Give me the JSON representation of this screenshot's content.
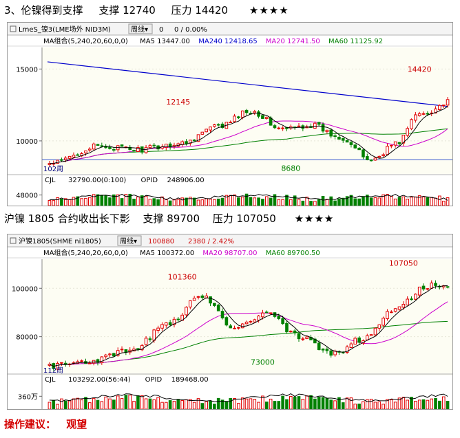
{
  "section1": {
    "title": "3、伦镍得到支撑",
    "support": "支撑 12740",
    "resistance": "压力 14420",
    "stars": "★★★★"
  },
  "section2": {
    "title": "沪镍 1805 合约收出长下影",
    "support": "支撑 89700",
    "resistance": "压力 107050",
    "stars": "★★★★"
  },
  "advice": {
    "label": "操作建议：",
    "value": "观望"
  },
  "chart_data": [
    {
      "type": "candlestick",
      "name": "LmeS_镍3(LME场外 NID3M)",
      "period_button": "周线",
      "header_values": [
        "0",
        "0 / 0.00%"
      ],
      "ma_legend": {
        "group": "MA组合(5,240,20,60,0,0)",
        "ma5": "MA5 13447.00",
        "ma240": "MA240 12418.65",
        "ma20": "MA20 12741.50",
        "ma60": "MA60 11125.92"
      },
      "price_ticks": [
        "15000",
        "10000"
      ],
      "ylim": [
        7700,
        16500
      ],
      "annotations": [
        {
          "label": "12145",
          "value": 12145
        },
        {
          "label": "8680",
          "value": 8680
        },
        {
          "label": "14420",
          "value": 14420
        }
      ],
      "period_label": "102周",
      "volume_legend": {
        "cjl": "CJL",
        "cjl_value": "32790.00(0:100)",
        "opid": "OPID",
        "opid_value": "248906.00"
      },
      "volume_ticks": [
        "48000"
      ],
      "colors": {
        "up": "#e00000",
        "down": "#008000",
        "ma5": "#000000",
        "ma240": "#0000cc",
        "ma20": "#cc00cc",
        "ma60": "#008000"
      }
    },
    {
      "type": "candlestick",
      "name": "沪镍1805(SHME ni1805)",
      "period_button": "周线",
      "header_values": [
        "100880",
        "2380 / 2.42%"
      ],
      "ma_legend": {
        "group": "MA组合(5,240,20,60,0,0)",
        "ma5": "MA5 100372.00",
        "ma20": "MA20 98707.00",
        "ma60": "MA60 89700.50"
      },
      "price_ticks": [
        "100000",
        "80000"
      ],
      "ylim": [
        64000,
        112000
      ],
      "annotations": [
        {
          "label": "101360",
          "value": 101360
        },
        {
          "label": "73000",
          "value": 73000
        },
        {
          "label": "107050",
          "value": 107050
        }
      ],
      "period_label": "112周",
      "volume_legend": {
        "cjl": "CJL",
        "cjl_value": "103292.00(56:44)",
        "opid": "OPID",
        "opid_value": "189468.00"
      },
      "volume_ticks": [
        "360万"
      ],
      "colors": {
        "up": "#e00000",
        "down": "#008000",
        "ma5": "#000000",
        "ma20": "#cc00cc",
        "ma60": "#008000"
      }
    }
  ]
}
